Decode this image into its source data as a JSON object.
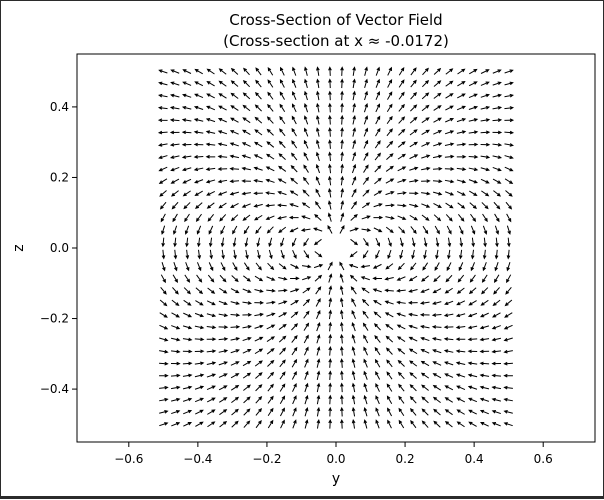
{
  "chart_data": {
    "type": "quiver",
    "title": "Cross-Section of Vector Field",
    "subtitle": "(Cross-section at x ≈ -0.0172)",
    "xlabel": "y",
    "ylabel": "z",
    "xlim": [
      -0.75,
      0.75
    ],
    "ylim": [
      -0.55,
      0.55
    ],
    "xticks": [
      -0.6,
      -0.4,
      -0.2,
      0.0,
      0.2,
      0.4,
      0.6
    ],
    "xtick_labels": [
      "−0.6",
      "−0.4",
      "−0.2",
      "0.0",
      "0.2",
      "0.4",
      "0.6"
    ],
    "yticks": [
      -0.4,
      -0.2,
      0.0,
      0.2,
      0.4
    ],
    "ytick_labels": [
      "−0.4",
      "−0.2",
      "0.0",
      "0.2",
      "0.4"
    ],
    "grid": false,
    "arrow_color": "#000000",
    "field": {
      "y_range": [
        -0.5,
        0.5
      ],
      "z_range": [
        -0.5,
        0.5
      ],
      "count": 30,
      "x_section": -0.0172,
      "description": "dipole-like field, unit-normalized arrows"
    }
  }
}
